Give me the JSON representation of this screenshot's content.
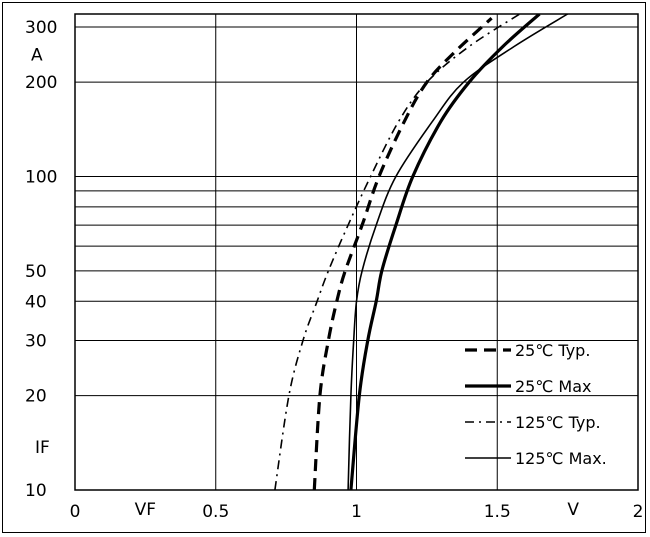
{
  "chart_data": {
    "type": "line",
    "title": "",
    "xlabel": "VF",
    "xunit": "V",
    "ylabel": "IF",
    "yunit": "A",
    "xlim": [
      0,
      2
    ],
    "ylim": [
      10,
      330
    ],
    "yscale": "log",
    "grid": true,
    "legend_position": "bottom-right",
    "x_ticks": [
      "0",
      "0.5",
      "1",
      "1.5",
      "2"
    ],
    "x_tick_values": [
      0,
      0.5,
      1,
      1.5,
      2
    ],
    "y_ticks": [
      "10",
      "20",
      "30",
      "40",
      "50",
      "100",
      "200",
      "300"
    ],
    "y_tick_values": [
      10,
      20,
      30,
      40,
      50,
      100,
      200,
      300
    ],
    "y_grid_values": [
      10,
      20,
      30,
      40,
      50,
      60,
      70,
      80,
      90,
      100,
      200,
      300
    ],
    "series": [
      {
        "name": "25℃ Typ.",
        "style": "dashed",
        "color": "#000000",
        "points": [
          [
            0.85,
            10
          ],
          [
            0.87,
            20
          ],
          [
            0.9,
            30
          ],
          [
            0.93,
            40
          ],
          [
            0.96,
            50
          ],
          [
            1.02,
            70
          ],
          [
            1.08,
            100
          ],
          [
            1.17,
            150
          ],
          [
            1.25,
            200
          ],
          [
            1.35,
            250
          ],
          [
            1.48,
            320
          ]
        ]
      },
      {
        "name": "25℃ Max",
        "style": "solid-bold",
        "color": "#000000",
        "points": [
          [
            0.98,
            10
          ],
          [
            1.01,
            20
          ],
          [
            1.04,
            30
          ],
          [
            1.07,
            40
          ],
          [
            1.09,
            50
          ],
          [
            1.14,
            70
          ],
          [
            1.2,
            100
          ],
          [
            1.3,
            150
          ],
          [
            1.4,
            200
          ],
          [
            1.52,
            260
          ],
          [
            1.65,
            330
          ]
        ]
      },
      {
        "name": "125℃ Typ.",
        "style": "dash-dot",
        "color": "#000000",
        "points": [
          [
            0.71,
            10
          ],
          [
            0.76,
            20
          ],
          [
            0.81,
            30
          ],
          [
            0.86,
            40
          ],
          [
            0.9,
            50
          ],
          [
            0.97,
            70
          ],
          [
            1.05,
            100
          ],
          [
            1.15,
            150
          ],
          [
            1.25,
            200
          ],
          [
            1.4,
            260
          ],
          [
            1.58,
            330
          ]
        ]
      },
      {
        "name": "125℃ Max.",
        "style": "solid-thin",
        "color": "#000000",
        "points": [
          [
            0.97,
            10
          ],
          [
            0.98,
            20
          ],
          [
            0.99,
            30
          ],
          [
            1.0,
            40
          ],
          [
            1.02,
            50
          ],
          [
            1.07,
            70
          ],
          [
            1.14,
            100
          ],
          [
            1.27,
            150
          ],
          [
            1.38,
            200
          ],
          [
            1.56,
            260
          ],
          [
            1.75,
            330
          ]
        ]
      }
    ]
  }
}
